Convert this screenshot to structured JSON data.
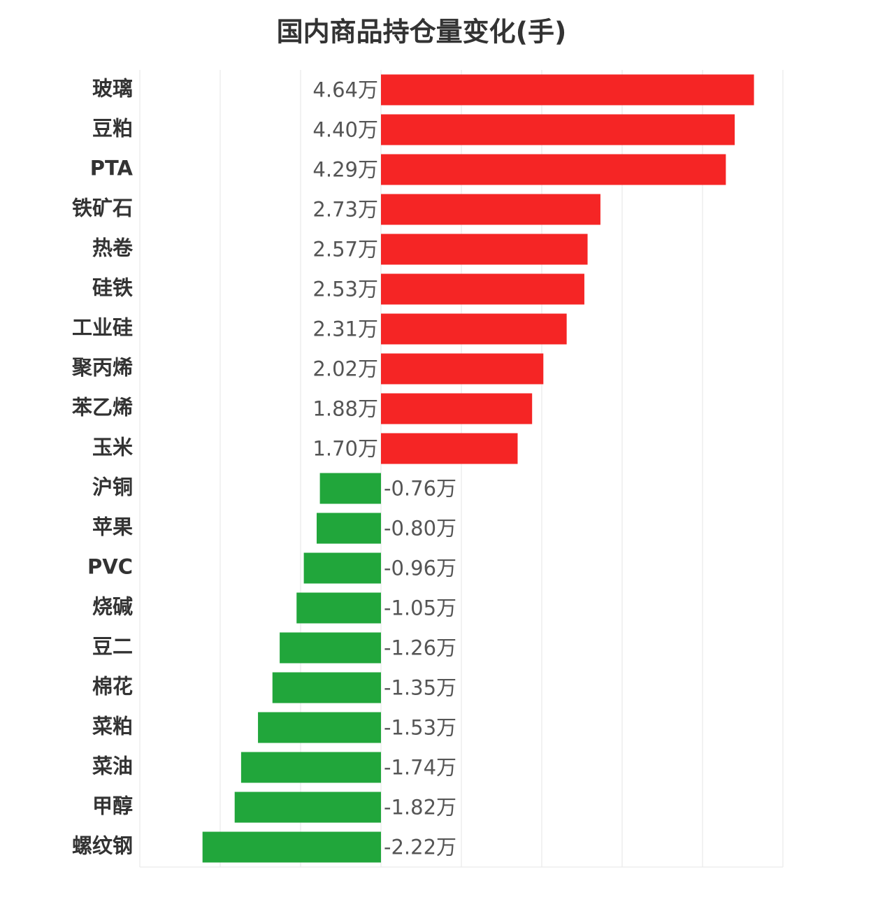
{
  "chart_data": {
    "type": "diverging-bar",
    "title": "国内商品持仓量变化(手)",
    "categories": [
      "玻璃",
      "豆粕",
      "PTA",
      "铁矿石",
      "热卷",
      "硅铁",
      "工业硅",
      "聚丙烯",
      "苯乙烯",
      "玉米",
      "沪铜",
      "苹果",
      "PVC",
      "烧碱",
      "豆二",
      "棉花",
      "菜粕",
      "菜油",
      "甲醇",
      "螺纹钢"
    ],
    "values": [
      4.64,
      4.4,
      4.29,
      2.73,
      2.57,
      2.53,
      2.31,
      2.02,
      1.88,
      1.7,
      -0.76,
      -0.8,
      -0.96,
      -1.05,
      -1.26,
      -1.35,
      -1.53,
      -1.74,
      -1.82,
      -2.22
    ],
    "value_labels": [
      "4.64万",
      "4.40万",
      "4.29万",
      "2.73万",
      "2.57万",
      "2.53万",
      "2.31万",
      "2.02万",
      "1.88万",
      "1.70万",
      "-0.76万",
      "-0.80万",
      "-0.96万",
      "-1.05万",
      "-1.26万",
      "-1.35万",
      "-1.53万",
      "-1.74万",
      "-1.82万",
      "-2.22万"
    ],
    "colors": {
      "positive": "#f52525",
      "negative": "#21a63b"
    },
    "xlim": [
      -3,
      5
    ],
    "xticks": [
      -3,
      -2,
      -1,
      0,
      1,
      2,
      3,
      4,
      5
    ],
    "grid": true
  }
}
